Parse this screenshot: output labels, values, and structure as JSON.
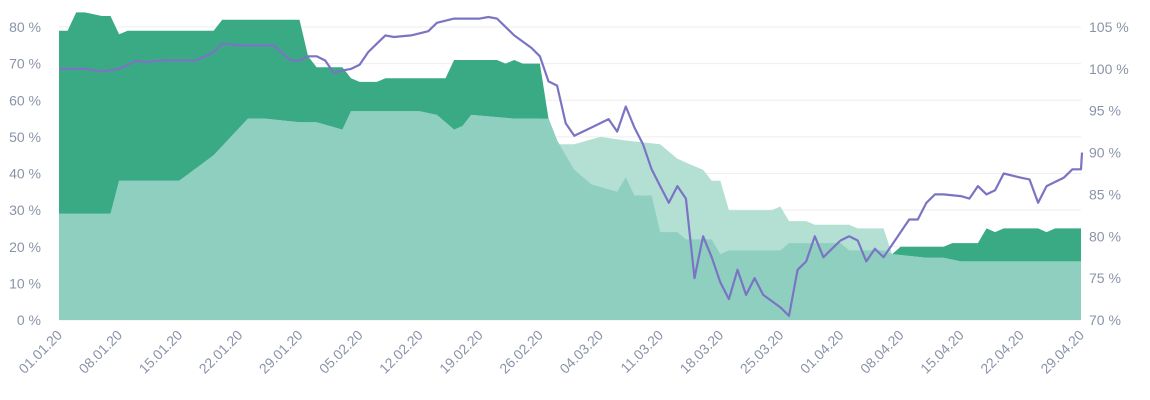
{
  "chart_data": {
    "type": "area",
    "title": "",
    "xlabel": "",
    "ylabel": "",
    "grid": true,
    "legend": "none",
    "x_range": [
      "01.01.20",
      "29.04.20"
    ],
    "x_ticks": [
      "01.01.20",
      "08.01.20",
      "15.01.20",
      "22.01.20",
      "29.01.20",
      "05.02.20",
      "12.02.20",
      "19.02.20",
      "26.02.20",
      "04.03.20",
      "11.03.20",
      "18.03.20",
      "25.03.20",
      "01.04.20",
      "08.04.20",
      "15.04.20",
      "22.04.20",
      "29.04.20"
    ],
    "y_left": {
      "range": [
        0,
        80
      ],
      "ticks": [
        0,
        10,
        20,
        30,
        40,
        50,
        60,
        70,
        80
      ],
      "unit": "%"
    },
    "y_right": {
      "range": [
        70,
        105
      ],
      "ticks": [
        70,
        75,
        80,
        85,
        90,
        95,
        100,
        105
      ],
      "unit": "%"
    },
    "series": [
      {
        "axis": "left",
        "style": "area",
        "color": "#3aaa85",
        "points": [
          [
            "01.01.20",
            79
          ],
          [
            "02.01.20",
            79
          ],
          [
            "03.01.20",
            84
          ],
          [
            "04.01.20",
            84
          ],
          [
            "06.01.20",
            83
          ],
          [
            "07.01.20",
            83
          ],
          [
            "08.01.20",
            78
          ],
          [
            "09.01.20",
            79
          ],
          [
            "12.01.20",
            79
          ],
          [
            "15.01.20",
            79
          ],
          [
            "19.01.20",
            79
          ],
          [
            "20.01.20",
            82
          ],
          [
            "24.01.20",
            82
          ],
          [
            "29.01.20",
            82
          ],
          [
            "30.01.20",
            72
          ],
          [
            "31.01.20",
            69
          ],
          [
            "03.02.20",
            69
          ],
          [
            "04.02.20",
            66
          ],
          [
            "05.02.20",
            65
          ],
          [
            "07.02.20",
            65
          ],
          [
            "08.02.20",
            66
          ],
          [
            "15.02.20",
            66
          ],
          [
            "16.02.20",
            71
          ],
          [
            "21.02.20",
            71
          ],
          [
            "22.02.20",
            70
          ],
          [
            "23.02.20",
            71
          ],
          [
            "24.02.20",
            70
          ],
          [
            "26.02.20",
            70
          ],
          [
            "27.02.20",
            55
          ],
          [
            "28.02.20",
            49
          ],
          [
            "29.02.20",
            45
          ],
          [
            "01.03.20",
            41
          ],
          [
            "03.03.20",
            37
          ],
          [
            "06.03.20",
            35
          ],
          [
            "07.03.20",
            39
          ],
          [
            "08.03.20",
            34
          ],
          [
            "10.03.20",
            34
          ],
          [
            "11.03.20",
            24
          ],
          [
            "13.03.20",
            24
          ],
          [
            "14.03.20",
            22
          ],
          [
            "17.03.20",
            22
          ],
          [
            "18.03.20",
            18
          ],
          [
            "19.03.20",
            19
          ],
          [
            "25.03.20",
            19
          ],
          [
            "26.03.20",
            21
          ],
          [
            "01.04.20",
            21
          ],
          [
            "02.04.20",
            19
          ],
          [
            "06.04.20",
            19
          ],
          [
            "07.04.20",
            18
          ],
          [
            "08.04.20",
            20
          ],
          [
            "13.04.20",
            20
          ],
          [
            "14.04.20",
            21
          ],
          [
            "17.04.20",
            21
          ],
          [
            "18.04.20",
            25
          ],
          [
            "19.04.20",
            24
          ],
          [
            "20.04.20",
            25
          ],
          [
            "24.04.20",
            25
          ],
          [
            "25.04.20",
            24
          ],
          [
            "26.04.20",
            25
          ],
          [
            "29.04.20",
            25
          ]
        ]
      },
      {
        "axis": "left",
        "style": "area",
        "color": "#b3e0d3",
        "points": [
          [
            "01.01.20",
            29
          ],
          [
            "07.01.20",
            29
          ],
          [
            "08.01.20",
            38
          ],
          [
            "15.01.20",
            38
          ],
          [
            "19.01.20",
            45
          ],
          [
            "21.01.20",
            50
          ],
          [
            "23.01.20",
            55
          ],
          [
            "25.01.20",
            55
          ],
          [
            "29.01.20",
            54
          ],
          [
            "31.01.20",
            54
          ],
          [
            "03.02.20",
            52
          ],
          [
            "04.02.20",
            57
          ],
          [
            "08.02.20",
            57
          ],
          [
            "12.02.20",
            57
          ],
          [
            "14.02.20",
            56
          ],
          [
            "16.02.20",
            52
          ],
          [
            "17.02.20",
            53
          ],
          [
            "18.02.20",
            56
          ],
          [
            "23.02.20",
            55
          ],
          [
            "26.02.20",
            55
          ],
          [
            "27.02.20",
            48
          ],
          [
            "01.03.20",
            48
          ],
          [
            "04.03.20",
            50
          ],
          [
            "07.03.20",
            49
          ],
          [
            "11.03.20",
            48
          ],
          [
            "13.03.20",
            44
          ],
          [
            "15.03.20",
            42
          ],
          [
            "16.03.20",
            41
          ],
          [
            "17.03.20",
            38
          ],
          [
            "18.03.20",
            38
          ],
          [
            "19.03.20",
            30
          ],
          [
            "24.03.20",
            30
          ],
          [
            "25.03.20",
            31
          ],
          [
            "26.03.20",
            27
          ],
          [
            "28.03.20",
            27
          ],
          [
            "29.03.20",
            26
          ],
          [
            "01.04.20",
            26
          ],
          [
            "02.04.20",
            26
          ],
          [
            "03.04.20",
            25
          ],
          [
            "06.04.20",
            25
          ],
          [
            "07.04.20",
            18
          ],
          [
            "11.04.20",
            17
          ],
          [
            "13.04.20",
            17
          ],
          [
            "15.04.20",
            16
          ],
          [
            "29.04.20",
            16
          ]
        ]
      },
      {
        "axis": "left",
        "style": "area",
        "color": "#8ecfc0",
        "points": [
          [
            "01.01.20",
            29
          ],
          [
            "07.01.20",
            29
          ],
          [
            "08.01.20",
            38
          ],
          [
            "15.01.20",
            38
          ],
          [
            "19.01.20",
            45
          ],
          [
            "21.01.20",
            50
          ],
          [
            "23.01.20",
            55
          ],
          [
            "25.01.20",
            55
          ],
          [
            "29.01.20",
            54
          ],
          [
            "31.01.20",
            54
          ],
          [
            "03.02.20",
            52
          ],
          [
            "04.02.20",
            57
          ],
          [
            "08.02.20",
            57
          ],
          [
            "12.02.20",
            57
          ],
          [
            "14.02.20",
            56
          ],
          [
            "16.02.20",
            52
          ],
          [
            "17.02.20",
            53
          ],
          [
            "18.02.20",
            56
          ],
          [
            "23.02.20",
            55
          ],
          [
            "26.02.20",
            55
          ],
          [
            "27.02.20",
            55
          ],
          [
            "28.02.20",
            49
          ],
          [
            "29.02.20",
            45
          ],
          [
            "01.03.20",
            41
          ],
          [
            "03.03.20",
            37
          ],
          [
            "06.03.20",
            35
          ],
          [
            "07.03.20",
            39
          ],
          [
            "08.03.20",
            34
          ],
          [
            "10.03.20",
            34
          ],
          [
            "11.03.20",
            24
          ],
          [
            "13.03.20",
            24
          ],
          [
            "14.03.20",
            22
          ],
          [
            "17.03.20",
            22
          ],
          [
            "18.03.20",
            18
          ],
          [
            "19.03.20",
            19
          ],
          [
            "25.03.20",
            19
          ],
          [
            "26.03.20",
            21
          ],
          [
            "01.04.20",
            21
          ],
          [
            "02.04.20",
            19
          ],
          [
            "06.04.20",
            19
          ],
          [
            "07.04.20",
            18
          ],
          [
            "11.04.20",
            17
          ],
          [
            "13.04.20",
            17
          ],
          [
            "15.04.20",
            16
          ],
          [
            "29.04.20",
            16
          ]
        ]
      },
      {
        "axis": "right",
        "style": "line",
        "color": "#7b74c4",
        "points": [
          [
            "01.01.20",
            100
          ],
          [
            "04.01.20",
            100
          ],
          [
            "06.01.20",
            99.7
          ],
          [
            "08.01.20",
            100
          ],
          [
            "10.01.20",
            101
          ],
          [
            "11.01.20",
            100.8
          ],
          [
            "13.01.20",
            101
          ],
          [
            "15.01.20",
            101
          ],
          [
            "17.01.20",
            101
          ],
          [
            "19.01.20",
            102
          ],
          [
            "20.01.20",
            103
          ],
          [
            "22.01.20",
            102.8
          ],
          [
            "24.01.20",
            102.8
          ],
          [
            "26.01.20",
            102.8
          ],
          [
            "28.01.20",
            101
          ],
          [
            "29.01.20",
            101
          ],
          [
            "30.01.20",
            101.5
          ],
          [
            "31.01.20",
            101.5
          ],
          [
            "01.02.20",
            101
          ],
          [
            "02.02.20",
            99.5
          ],
          [
            "03.02.20",
            99.8
          ],
          [
            "04.02.20",
            100
          ],
          [
            "05.02.20",
            100.5
          ],
          [
            "06.02.20",
            102
          ],
          [
            "07.02.20",
            103
          ],
          [
            "08.02.20",
            104
          ],
          [
            "09.02.20",
            103.8
          ],
          [
            "11.02.20",
            104
          ],
          [
            "13.02.20",
            104.5
          ],
          [
            "14.02.20",
            105.5
          ],
          [
            "16.02.20",
            106
          ],
          [
            "19.02.20",
            106
          ],
          [
            "20.02.20",
            106.2
          ],
          [
            "21.02.20",
            106
          ],
          [
            "23.02.20",
            104
          ],
          [
            "25.02.20",
            102.5
          ],
          [
            "26.02.20",
            101.5
          ],
          [
            "27.02.20",
            98.5
          ],
          [
            "28.02.20",
            98
          ],
          [
            "29.02.20",
            93.5
          ],
          [
            "01.03.20",
            92
          ],
          [
            "03.03.20",
            93
          ],
          [
            "05.03.20",
            94
          ],
          [
            "06.03.20",
            92.5
          ],
          [
            "07.03.20",
            95.5
          ],
          [
            "08.03.20",
            93
          ],
          [
            "09.03.20",
            91
          ],
          [
            "10.03.20",
            88
          ],
          [
            "11.03.20",
            86
          ],
          [
            "12.03.20",
            84
          ],
          [
            "13.03.20",
            86
          ],
          [
            "14.03.20",
            84.5
          ],
          [
            "15.03.20",
            75
          ],
          [
            "16.03.20",
            80
          ],
          [
            "17.03.20",
            77.5
          ],
          [
            "18.03.20",
            74.5
          ],
          [
            "19.03.20",
            72.5
          ],
          [
            "20.03.20",
            76
          ],
          [
            "21.03.20",
            73
          ],
          [
            "22.03.20",
            75
          ],
          [
            "23.03.20",
            73
          ],
          [
            "25.03.20",
            71.5
          ],
          [
            "26.03.20",
            70.5
          ],
          [
            "27.03.20",
            76
          ],
          [
            "28.03.20",
            77
          ],
          [
            "29.03.20",
            80
          ],
          [
            "30.03.20",
            77.5
          ],
          [
            "31.03.20",
            78.5
          ],
          [
            "01.04.20",
            79.5
          ],
          [
            "02.04.20",
            80
          ],
          [
            "03.04.20",
            79.5
          ],
          [
            "04.04.20",
            77
          ],
          [
            "05.04.20",
            78.5
          ],
          [
            "06.04.20",
            77.5
          ],
          [
            "07.04.20",
            79
          ],
          [
            "09.04.20",
            82
          ],
          [
            "10.04.20",
            82
          ],
          [
            "11.04.20",
            84
          ],
          [
            "12.04.20",
            85
          ],
          [
            "13.04.20",
            85
          ],
          [
            "15.04.20",
            84.8
          ],
          [
            "16.04.20",
            84.5
          ],
          [
            "17.04.20",
            86
          ],
          [
            "18.04.20",
            85
          ],
          [
            "19.04.20",
            85.5
          ],
          [
            "20.04.20",
            87.5
          ],
          [
            "22.04.20",
            87
          ],
          [
            "23.04.20",
            86.8
          ],
          [
            "24.04.20",
            84
          ],
          [
            "25.04.20",
            86
          ],
          [
            "26.04.20",
            86.5
          ],
          [
            "27.04.20",
            87
          ],
          [
            "28.04.20",
            88
          ],
          [
            "29.04.20",
            88
          ],
          [
            "30.04.20",
            90
          ]
        ]
      }
    ]
  }
}
